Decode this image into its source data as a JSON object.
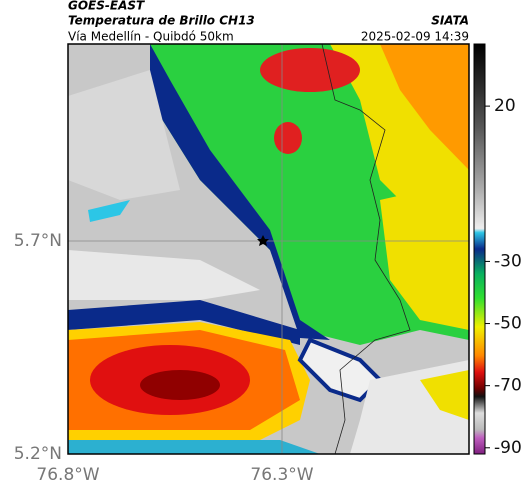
{
  "header": {
    "product": "GOES-EAST",
    "title": "Temperatura de Brillo CH13",
    "subtitle": "Vía Medellín - Quibdó 50km",
    "source": "SIATA",
    "timestamp": "2025-02-09 14:39"
  },
  "axes": {
    "lat_labels": [
      "5.7°N",
      "5.2°N"
    ],
    "lon_labels": [
      "76.8°W",
      "76.3°W"
    ]
  },
  "colorbar": {
    "lim": [
      40,
      -92
    ],
    "ticks": [
      20,
      -30,
      -50,
      -70,
      -90
    ]
  }
}
